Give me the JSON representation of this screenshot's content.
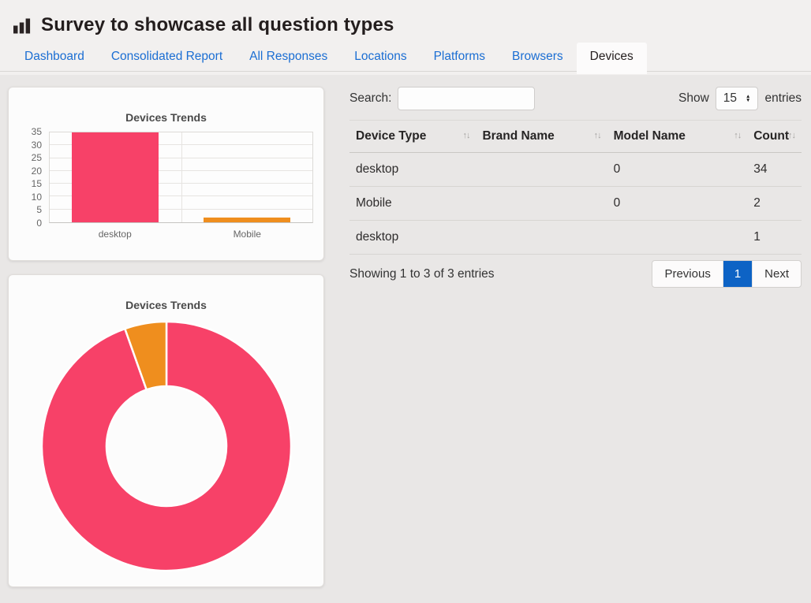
{
  "page": {
    "background": "#e9e7e6",
    "top_background": "#f2f0ef"
  },
  "header": {
    "icon": "bar-chart-icon",
    "title": "Survey to showcase all question types"
  },
  "tabs": {
    "link_color": "#1b6ed3",
    "items": [
      {
        "label": "Dashboard",
        "active": false
      },
      {
        "label": "Consolidated Report",
        "active": false
      },
      {
        "label": "All Responses",
        "active": false
      },
      {
        "label": "Locations",
        "active": false
      },
      {
        "label": "Platforms",
        "active": false
      },
      {
        "label": "Browsers",
        "active": false
      },
      {
        "label": "Devices",
        "active": true
      }
    ]
  },
  "panel": {
    "search": {
      "label": "Search:",
      "value": "",
      "placeholder": ""
    },
    "show_entries": {
      "prefix": "Show",
      "selected": "15",
      "suffix": "entries"
    },
    "table": {
      "sort_icon": "↑↓",
      "columns": [
        {
          "label": "Device Type",
          "sortable": true
        },
        {
          "label": "Brand Name",
          "sortable": true
        },
        {
          "label": "Model Name",
          "sortable": true
        },
        {
          "label": "Count",
          "sortable": true
        }
      ],
      "rows": [
        [
          "desktop",
          "",
          "0",
          "34"
        ],
        [
          "Mobile",
          "",
          "0",
          "2"
        ],
        [
          "desktop",
          "",
          "",
          "1"
        ]
      ]
    },
    "summary": "Showing 1 to 3 of 3 entries",
    "pagination": {
      "previous": "Previous",
      "pages": [
        {
          "label": "1",
          "active": true
        }
      ],
      "next": "Next",
      "active_color": "#0d63c5"
    }
  },
  "chart_data": [
    {
      "type": "bar",
      "title": "Devices Trends",
      "categories": [
        "desktop",
        "Mobile"
      ],
      "values": [
        35,
        2
      ],
      "colors": [
        "#f74168",
        "#ef8e1e"
      ],
      "xlabel": "",
      "ylabel": "",
      "ylim": [
        0,
        35
      ],
      "yticks": [
        0,
        5,
        10,
        15,
        20,
        25,
        30,
        35
      ],
      "grid": true,
      "legend": "none"
    },
    {
      "type": "donut",
      "title": "Devices Trends",
      "categories": [
        "desktop",
        "Mobile"
      ],
      "values": [
        35,
        2
      ],
      "colors": [
        "#f74168",
        "#ef8e1e"
      ],
      "inner_radius_ratio": 0.48,
      "start_angle_deg": 0,
      "direction": "clockwise",
      "legend": "none"
    }
  ]
}
